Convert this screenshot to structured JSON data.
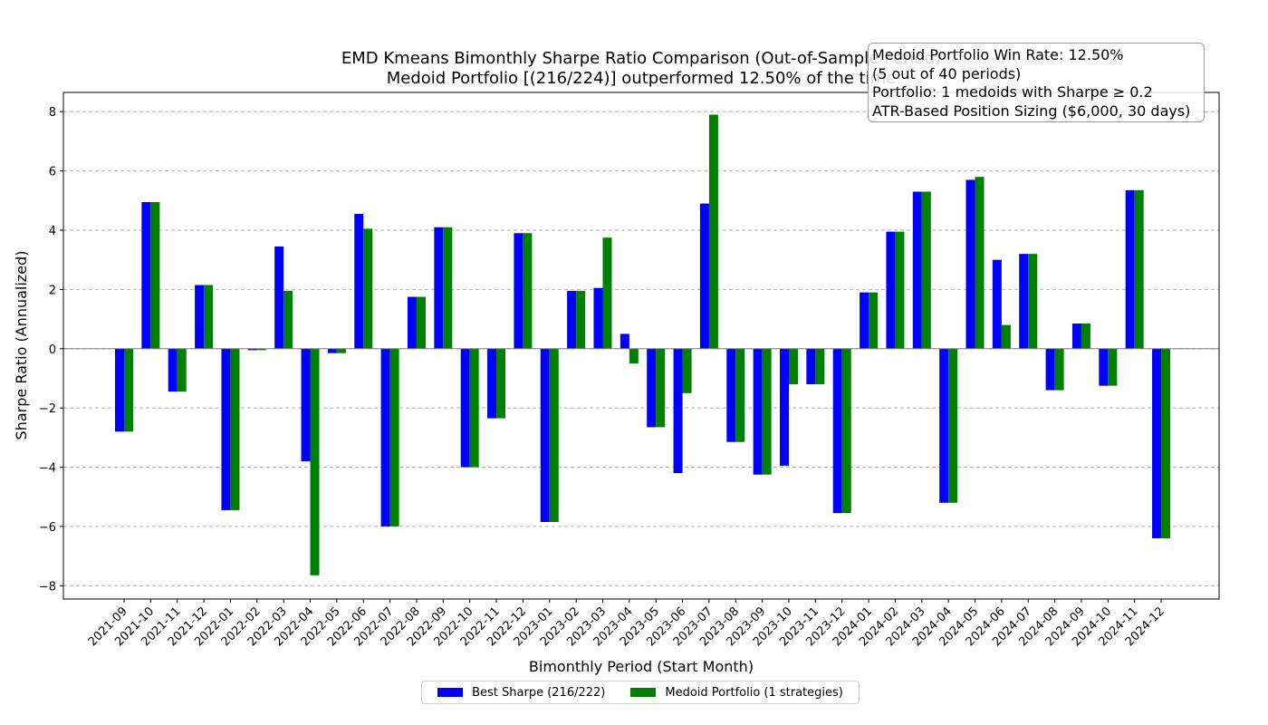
{
  "chart_data": {
    "type": "bar",
    "title": "EMD Kmeans Bimonthly Sharpe Ratio Comparison (Out-of-Sample Period)",
    "subtitle": "Medoid Portfolio [(216/224)] outperformed 12.50% of the time",
    "xlabel": "Bimonthly Period (Start Month)",
    "ylabel": "Sharpe Ratio (Annualized)",
    "ylim": [
      -8.45,
      8.65
    ],
    "yticks": [
      -8,
      -6,
      -4,
      -2,
      0,
      2,
      4,
      6,
      8
    ],
    "grid": true,
    "legend_position": "bottom-center",
    "categories": [
      "2021-09",
      "2021-10",
      "2021-11",
      "2021-12",
      "2022-01",
      "2022-02",
      "2022-03",
      "2022-04",
      "2022-05",
      "2022-06",
      "2022-07",
      "2022-08",
      "2022-09",
      "2022-10",
      "2022-11",
      "2022-12",
      "2023-01",
      "2023-02",
      "2023-03",
      "2023-04",
      "2023-05",
      "2023-06",
      "2023-07",
      "2023-08",
      "2023-09",
      "2023-10",
      "2023-11",
      "2023-12",
      "2024-01",
      "2024-02",
      "2024-03",
      "2024-04",
      "2024-05",
      "2024-06",
      "2024-07",
      "2024-08",
      "2024-09",
      "2024-10",
      "2024-11",
      "2024-12"
    ],
    "series": [
      {
        "name": "Best Sharpe (216/222)",
        "color": "#0000ff",
        "values": [
          -2.8,
          4.95,
          -1.45,
          2.15,
          -5.45,
          -0.05,
          3.45,
          -3.8,
          -0.15,
          4.55,
          -6.0,
          1.75,
          4.1,
          -4.0,
          -2.35,
          3.9,
          -5.85,
          1.95,
          2.05,
          0.5,
          -2.65,
          -4.2,
          4.9,
          -3.15,
          -4.25,
          -3.95,
          -1.2,
          -5.55,
          1.9,
          3.95,
          5.3,
          -5.2,
          5.7,
          3.0,
          3.2,
          -1.4,
          0.85,
          -1.25,
          5.35,
          -6.4
        ]
      },
      {
        "name": "Medoid Portfolio (1 strategies)",
        "color": "#008000",
        "values": [
          -2.8,
          4.95,
          -1.45,
          2.15,
          -5.45,
          -0.05,
          1.95,
          -7.65,
          -0.15,
          4.05,
          -6.0,
          1.75,
          4.1,
          -4.0,
          -2.35,
          3.9,
          -5.85,
          1.95,
          3.75,
          -0.5,
          -2.65,
          -1.5,
          7.9,
          -3.15,
          -4.25,
          -1.2,
          -1.2,
          -5.55,
          1.9,
          3.95,
          5.3,
          -5.2,
          5.8,
          0.8,
          3.2,
          -1.4,
          0.85,
          -1.25,
          5.35,
          -6.4
        ]
      }
    ]
  },
  "info_box": {
    "line1": "Medoid Portfolio Win Rate: 12.50%",
    "line2": "(5 out of 40 periods)",
    "line3": "Portfolio: 1 medoids with Sharpe ≥ 0.2",
    "line4": "ATR-Based Position Sizing ($6,000, 30 days)"
  }
}
